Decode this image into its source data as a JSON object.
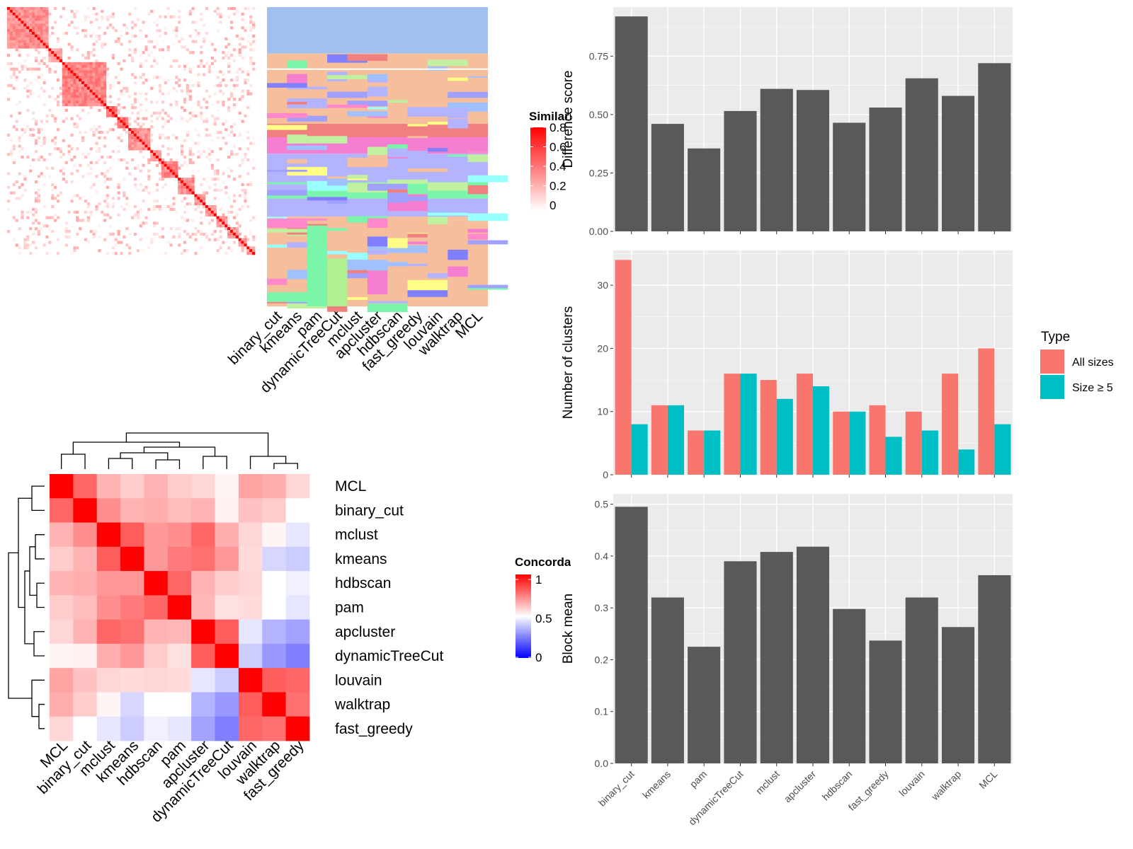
{
  "chart_data": [
    {
      "type": "heatmap",
      "legend_title": "Similarity",
      "legend_ticks": [
        "0",
        "0.2",
        "0.4",
        "0.6",
        "0.8"
      ],
      "scale_colors": [
        "#ffffff",
        "#ff0000"
      ]
    },
    {
      "type": "heatmap",
      "columns": [
        "binary_cut",
        "kmeans",
        "pam",
        "dynamicTreeCut",
        "mclust",
        "apcluster",
        "hdbscan",
        "fast_greedy",
        "louvain",
        "walktrap",
        "MCL"
      ]
    },
    {
      "type": "heatmap",
      "legend_title": "Concordance",
      "legend_ticks": [
        "0",
        "0.5",
        "1"
      ],
      "scale_colors": [
        "#0000ff",
        "#ffffff",
        "#ff0000"
      ],
      "rows": [
        "MCL",
        "binary_cut",
        "mclust",
        "kmeans",
        "hdbscan",
        "pam",
        "apcluster",
        "dynamicTreeCut",
        "louvain",
        "walktrap",
        "fast_greedy"
      ],
      "columns": [
        "MCL",
        "binary_cut",
        "mclust",
        "kmeans",
        "hdbscan",
        "pam",
        "apcluster",
        "dynamicTreeCut",
        "louvain",
        "walktrap",
        "fast_greedy"
      ],
      "values": [
        [
          1.0,
          0.8,
          0.65,
          0.6,
          0.65,
          0.6,
          0.58,
          0.52,
          0.68,
          0.66,
          0.58
        ],
        [
          0.8,
          1.0,
          0.72,
          0.65,
          0.66,
          0.63,
          0.65,
          0.53,
          0.62,
          0.6,
          0.5
        ],
        [
          0.65,
          0.72,
          1.0,
          0.82,
          0.7,
          0.72,
          0.8,
          0.66,
          0.58,
          0.52,
          0.45
        ],
        [
          0.6,
          0.65,
          0.82,
          1.0,
          0.7,
          0.76,
          0.78,
          0.7,
          0.57,
          0.42,
          0.4
        ],
        [
          0.65,
          0.66,
          0.7,
          0.7,
          1.0,
          0.8,
          0.65,
          0.6,
          0.58,
          0.5,
          0.47
        ],
        [
          0.6,
          0.63,
          0.72,
          0.76,
          0.8,
          1.0,
          0.64,
          0.56,
          0.57,
          0.5,
          0.45
        ],
        [
          0.58,
          0.65,
          0.8,
          0.78,
          0.65,
          0.64,
          1.0,
          0.82,
          0.45,
          0.35,
          0.32
        ],
        [
          0.52,
          0.53,
          0.66,
          0.7,
          0.6,
          0.56,
          0.82,
          1.0,
          0.4,
          0.3,
          0.25
        ],
        [
          0.68,
          0.62,
          0.58,
          0.57,
          0.58,
          0.57,
          0.45,
          0.4,
          1.0,
          0.82,
          0.8
        ],
        [
          0.66,
          0.6,
          0.52,
          0.42,
          0.5,
          0.5,
          0.35,
          0.3,
          0.82,
          1.0,
          0.78
        ],
        [
          0.58,
          0.5,
          0.45,
          0.4,
          0.47,
          0.45,
          0.32,
          0.25,
          0.8,
          0.78,
          1.0
        ]
      ]
    },
    {
      "type": "bar",
      "categories": [
        "binary_cut",
        "kmeans",
        "pam",
        "dynamicTreeCut",
        "mclust",
        "apcluster",
        "hdbscan",
        "fast_greedy",
        "louvain",
        "walktrap",
        "MCL"
      ],
      "values": [
        0.92,
        0.46,
        0.355,
        0.515,
        0.61,
        0.605,
        0.465,
        0.53,
        0.655,
        0.58,
        0.72
      ],
      "ylabel": "Difference score",
      "ylim": [
        0,
        0.96
      ],
      "yticks": [
        "0.00",
        "0.25",
        "0.50",
        "0.75"
      ]
    },
    {
      "type": "bar",
      "categories": [
        "binary_cut",
        "kmeans",
        "pam",
        "dynamicTreeCut",
        "mclust",
        "apcluster",
        "hdbscan",
        "fast_greedy",
        "louvain",
        "walktrap",
        "MCL"
      ],
      "series": [
        {
          "name": "All sizes",
          "values": [
            34,
            11,
            7,
            16,
            15,
            16,
            10,
            11,
            10,
            16,
            20
          ],
          "color": "#f8766d"
        },
        {
          "name": "Size ≥ 5",
          "values": [
            8,
            11,
            7,
            16,
            12,
            14,
            10,
            6,
            7,
            4,
            8
          ],
          "color": "#00bfc4"
        }
      ],
      "ylabel": "Number of clusters",
      "ylim": [
        0,
        35.5
      ],
      "yticks": [
        "0",
        "10",
        "20",
        "30"
      ],
      "legend_title": "Type",
      "legend_position": "right"
    },
    {
      "type": "bar",
      "categories": [
        "binary_cut",
        "kmeans",
        "pam",
        "dynamicTreeCut",
        "mclust",
        "apcluster",
        "hdbscan",
        "fast_greedy",
        "louvain",
        "walktrap",
        "MCL"
      ],
      "values": [
        0.495,
        0.32,
        0.225,
        0.39,
        0.408,
        0.418,
        0.298,
        0.237,
        0.32,
        0.263,
        0.363
      ],
      "ylabel": "Block mean",
      "ylim": [
        0,
        0.52
      ],
      "yticks": [
        "0.0",
        "0.1",
        "0.2",
        "0.3",
        "0.4",
        "0.5"
      ]
    }
  ]
}
